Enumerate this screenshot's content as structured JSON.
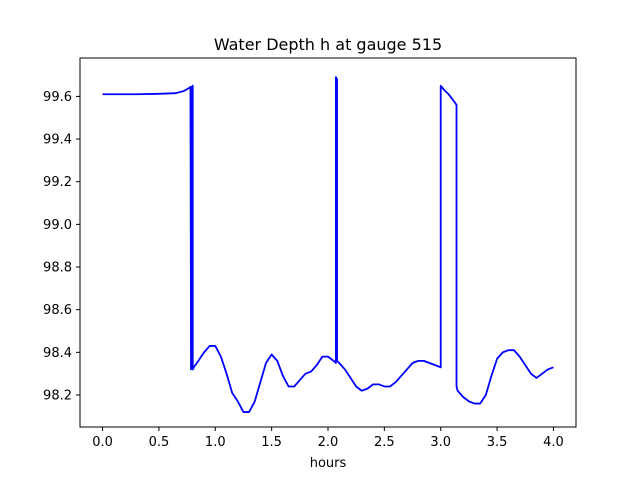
{
  "chart_data": {
    "type": "line",
    "title": "Water Depth h at gauge 515",
    "xlabel": "hours",
    "ylabel": "",
    "xlim": [
      -0.2,
      4.2
    ],
    "ylim": [
      98.05,
      99.78
    ],
    "grid": false,
    "x_ticks": [
      0.0,
      0.5,
      1.0,
      1.5,
      2.0,
      2.5,
      3.0,
      3.5,
      4.0
    ],
    "x_tick_labels": [
      "0.0",
      "0.5",
      "1.0",
      "1.5",
      "2.0",
      "2.5",
      "3.0",
      "3.5",
      "4.0"
    ],
    "y_ticks": [
      98.2,
      98.4,
      98.6,
      98.8,
      99.0,
      99.2,
      99.4,
      99.6
    ],
    "y_tick_labels": [
      "98.2",
      "98.4",
      "98.6",
      "98.8",
      "99.0",
      "99.2",
      "99.4",
      "99.6"
    ],
    "series": [
      {
        "color": "#0000ff",
        "x": [
          0.0,
          0.3,
          0.5,
          0.65,
          0.72,
          0.77,
          0.78,
          0.785,
          0.79,
          0.8,
          0.8,
          0.81,
          0.81,
          0.85,
          0.9,
          0.95,
          1.0,
          1.05,
          1.1,
          1.15,
          1.2,
          1.25,
          1.3,
          1.35,
          1.4,
          1.45,
          1.5,
          1.55,
          1.6,
          1.65,
          1.7,
          1.75,
          1.8,
          1.85,
          1.9,
          1.95,
          2.0,
          2.05,
          2.07,
          2.07,
          2.08,
          2.08,
          2.1,
          2.15,
          2.2,
          2.25,
          2.3,
          2.35,
          2.4,
          2.45,
          2.5,
          2.55,
          2.6,
          2.65,
          2.7,
          2.75,
          2.8,
          2.85,
          2.9,
          2.95,
          3.0,
          3.0,
          3.03,
          3.07,
          3.1,
          3.14,
          3.14,
          3.15,
          3.2,
          3.25,
          3.3,
          3.35,
          3.4,
          3.45,
          3.5,
          3.55,
          3.6,
          3.65,
          3.7,
          3.75,
          3.8,
          3.85,
          3.9,
          3.95,
          4.0
        ],
        "y": [
          99.61,
          99.61,
          99.612,
          99.615,
          99.625,
          99.64,
          99.645,
          98.32,
          99.64,
          99.65,
          98.32,
          98.33,
          98.33,
          98.36,
          98.4,
          98.43,
          98.43,
          98.38,
          98.3,
          98.21,
          98.17,
          98.12,
          98.12,
          98.17,
          98.26,
          98.35,
          98.39,
          98.36,
          98.29,
          98.24,
          98.24,
          98.27,
          98.3,
          98.31,
          98.34,
          98.38,
          98.38,
          98.36,
          98.35,
          99.69,
          99.68,
          98.36,
          98.35,
          98.32,
          98.28,
          98.24,
          98.22,
          98.23,
          98.25,
          98.25,
          98.24,
          98.24,
          98.26,
          98.29,
          98.32,
          98.35,
          98.36,
          98.36,
          98.35,
          98.34,
          98.33,
          99.65,
          99.63,
          99.61,
          99.59,
          99.56,
          98.24,
          98.22,
          98.19,
          98.17,
          98.16,
          98.16,
          98.2,
          98.29,
          98.37,
          98.4,
          98.41,
          98.41,
          98.38,
          98.34,
          98.3,
          98.28,
          98.3,
          98.32,
          98.33
        ]
      }
    ]
  }
}
